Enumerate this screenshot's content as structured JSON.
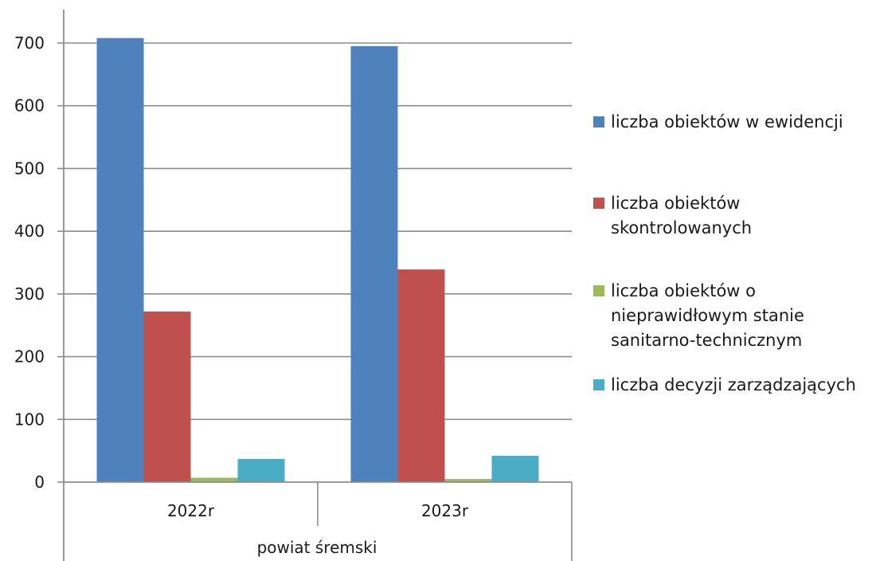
{
  "chart_data": {
    "type": "bar",
    "title": "",
    "xlabel": "",
    "ylabel": "",
    "group_label": "powiat śremski",
    "categories": [
      "2022r",
      "2023r"
    ],
    "ylim": [
      0,
      700
    ],
    "yticks": [
      0,
      100,
      200,
      300,
      400,
      500,
      600,
      700
    ],
    "grid": true,
    "legend_position": "right",
    "series": [
      {
        "name": "liczba obiektów w ewidencji",
        "color": "#4f81bd",
        "values": [
          708,
          695
        ]
      },
      {
        "name": "liczba obiektów skontrolowanych",
        "color": "#c0504d",
        "values": [
          272,
          339
        ]
      },
      {
        "name": "liczba obiektów o nieprawidłowym stanie sanitarno-technicznym",
        "color": "#9bbb59",
        "values": [
          7,
          5
        ]
      },
      {
        "name": "liczba decyzji zarządzających",
        "color": "#4bacc6",
        "values": [
          37,
          42
        ]
      }
    ]
  },
  "legend": {
    "items": [
      {
        "lines": [
          "liczba obiektów w ewidencji"
        ],
        "color": "#4f81bd"
      },
      {
        "lines": [
          "liczba obiektów",
          "skontrolowanych"
        ],
        "color": "#c0504d"
      },
      {
        "lines": [
          "liczba obiektów o",
          "nieprawidłowym stanie",
          "sanitarno-technicznym"
        ],
        "color": "#9bbb59"
      },
      {
        "lines": [
          "liczba decyzji zarządzających"
        ],
        "color": "#4bacc6"
      }
    ]
  }
}
